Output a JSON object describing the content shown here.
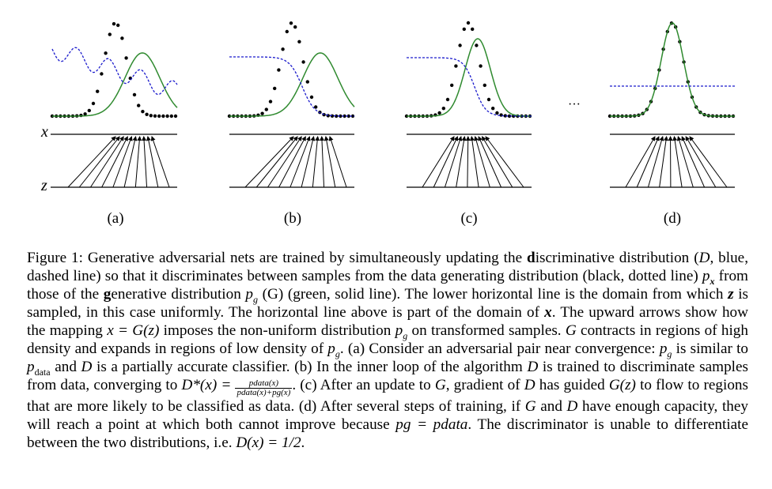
{
  "figure": {
    "axis_x_label": "x",
    "axis_z_label": "z",
    "ellipsis": "···",
    "panels": [
      {
        "label": "(a)"
      },
      {
        "label": "(b)"
      },
      {
        "label": "(c)"
      },
      {
        "label": "(d)"
      }
    ],
    "colors": {
      "data_dist": "#000000",
      "generative_dist": "#2f8a2f",
      "discriminator": "#1a1acc",
      "axis": "#000000"
    }
  },
  "caption": {
    "figure_label": "Figure 1:",
    "text_1": " Generative adversarial nets are trained by simultaneously updating the ",
    "bold_d": "d",
    "text_2": "iscriminative distribution (",
    "D": "D",
    "text_3": ", blue, dashed line) so that it discriminates between samples from the data generating distribution (black, dotted line) ",
    "px": "p",
    "px_sub": "x",
    "text_4": " from those of the ",
    "bold_g": "g",
    "text_5": "enerative distribution ",
    "pg": "p",
    "pg_sub": "g",
    "text_6": " (G) (green, solid line). The lower horizontal line is the domain from which ",
    "z": "z",
    "text_7": " is sampled, in this case uniformly. The horizontal line above is part of the domain of ",
    "x": "x",
    "text_8": ". The upward arrows show how the mapping ",
    "mapping": "x = G(z)",
    "text_9": " imposes the non-uniform distribution ",
    "text_10": " on transformed samples. ",
    "G": "G",
    "text_11": " contracts in regions of high density and expands in regions of low density of ",
    "text_12": ". (a) Consider an adversarial pair near convergence: ",
    "text_13": " is similar to ",
    "pdata": "p",
    "pdata_sub": "data",
    "text_14": " and ",
    "text_15": " is a partially accurate classifier. (b) In the inner loop of the algorithm ",
    "text_16": " is trained to discriminate samples from data, converging to ",
    "dstar": "D*(x) =",
    "frac_num": "pdata(x)",
    "frac_den": "pdata(x)+pg(x)",
    "text_17": ". (c) After an update to ",
    "text_18": ", gradient of ",
    "text_19": " has guided ",
    "Gz": "G(z)",
    "text_20": " to flow to regions that are more likely to be classified as data. (d) After several steps of training, if ",
    "text_21": " and ",
    "text_22": " have enough capacity, they will reach a point at which both cannot improve because ",
    "eq_pg_pdata": "pg = pdata",
    "text_23": ". The discriminator is unable to differentiate between the two distributions, i.e. ",
    "final_eq": "D(x) = 1/2",
    "text_24": "."
  }
}
